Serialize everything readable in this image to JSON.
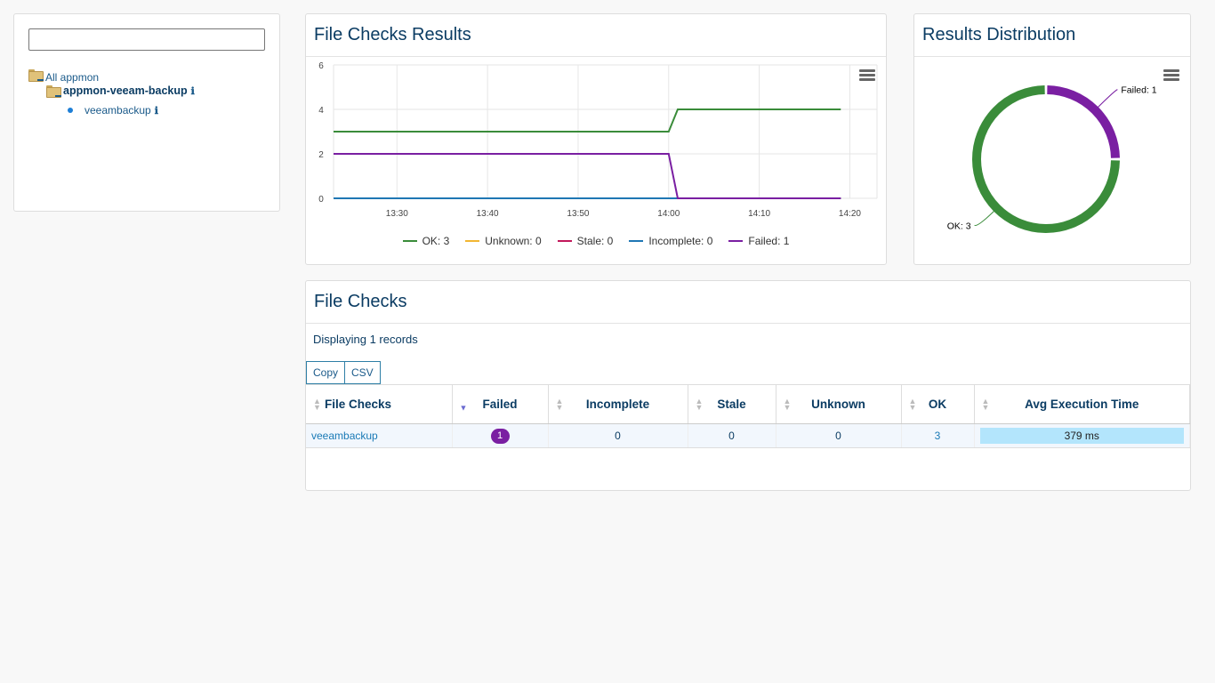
{
  "tree": {
    "search_value": "",
    "root_label": "All appmon",
    "group_label": "appmon-veeam-backup",
    "leaf_label": "veeambackup",
    "info_glyph": "ℹ"
  },
  "results_panel": {
    "title": "File Checks Results"
  },
  "distribution_panel": {
    "title": "Results Distribution"
  },
  "chart_data": [
    {
      "type": "line",
      "title": "File Checks Results",
      "x": [
        "13:23",
        "14:00",
        "14:01",
        "14:19"
      ],
      "x_ticks": [
        "13:30",
        "13:40",
        "13:50",
        "14:00",
        "14:10",
        "14:20"
      ],
      "y_ticks": [
        0,
        2,
        4,
        6
      ],
      "ylim": [
        0,
        6
      ],
      "grid": true,
      "legend_position": "bottom",
      "series": [
        {
          "name": "OK: 3",
          "color": "#3a8c3a",
          "values": [
            3,
            3,
            4,
            4
          ]
        },
        {
          "name": "Unknown: 0",
          "color": "#f2b632",
          "values": [
            0,
            0,
            0,
            0
          ]
        },
        {
          "name": "Stale: 0",
          "color": "#c2185b",
          "values": [
            0,
            0,
            0,
            0
          ]
        },
        {
          "name": "Incomplete: 0",
          "color": "#1f77b4",
          "values": [
            0,
            0,
            0,
            0
          ]
        },
        {
          "name": "Failed: 1",
          "color": "#7a1fa2",
          "values": [
            2,
            2,
            0,
            0
          ]
        }
      ]
    },
    {
      "type": "pie",
      "title": "Results Distribution",
      "donut": true,
      "slices": [
        {
          "label": "OK: 3",
          "value": 3,
          "color": "#3a8c3a"
        },
        {
          "label": "Failed: 1",
          "value": 1,
          "color": "#7a1fa2"
        }
      ]
    }
  ],
  "file_checks": {
    "title": "File Checks",
    "records_text": "Displaying 1 records",
    "buttons": {
      "copy": "Copy",
      "csv": "CSV"
    },
    "columns": [
      "File Checks",
      "Failed",
      "Incomplete",
      "Stale",
      "Unknown",
      "OK",
      "Avg Execution Time"
    ],
    "rows": [
      {
        "name": "veeambackup",
        "failed": "1",
        "incomplete": "0",
        "stale": "0",
        "unknown": "0",
        "ok": "3",
        "avg_time": "379 ms"
      }
    ]
  }
}
